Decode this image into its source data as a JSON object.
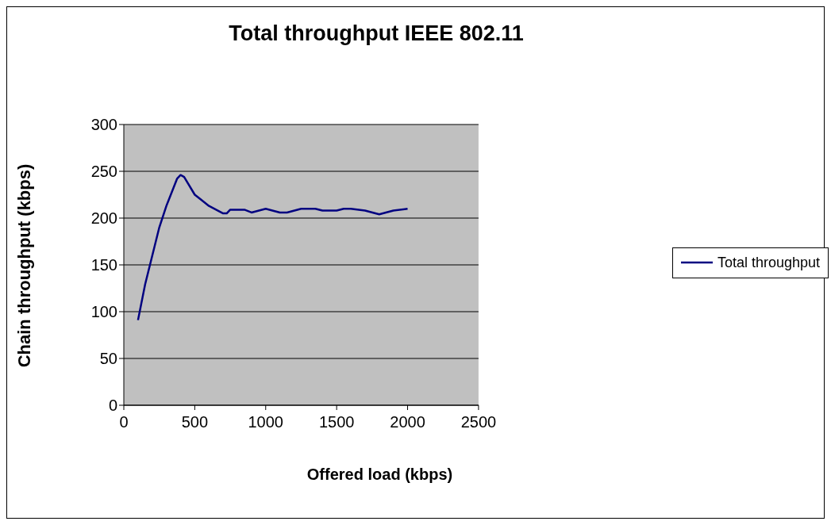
{
  "chart_data": {
    "type": "line",
    "title": "Total throughput IEEE 802.11",
    "xlabel": "Offered load (kbps)",
    "ylabel": "Chain throughput (kbps)",
    "x": [
      100,
      150,
      250,
      300,
      375,
      400,
      425,
      500,
      600,
      700,
      725,
      750,
      850,
      900,
      1000,
      1100,
      1150,
      1250,
      1350,
      1400,
      1500,
      1550,
      1600,
      1700,
      1800,
      1900,
      2000
    ],
    "series": [
      {
        "name": "Total throughput",
        "color": "#000080",
        "values": [
          91,
          129,
          190,
          213,
          242,
          246,
          244,
          225,
          213,
          205,
          205,
          209,
          209,
          206,
          210,
          206,
          206,
          210,
          210,
          208,
          208,
          210,
          210,
          208,
          204,
          208,
          210
        ]
      }
    ],
    "xlim": [
      0,
      2500
    ],
    "xticks": [
      0,
      500,
      1000,
      1500,
      2000,
      2500
    ],
    "ylim": [
      0,
      300
    ],
    "yticks": [
      0,
      50,
      100,
      150,
      200,
      250,
      300
    ],
    "grid": "y",
    "legend": "right",
    "marker": "none",
    "line_style": "solid"
  }
}
